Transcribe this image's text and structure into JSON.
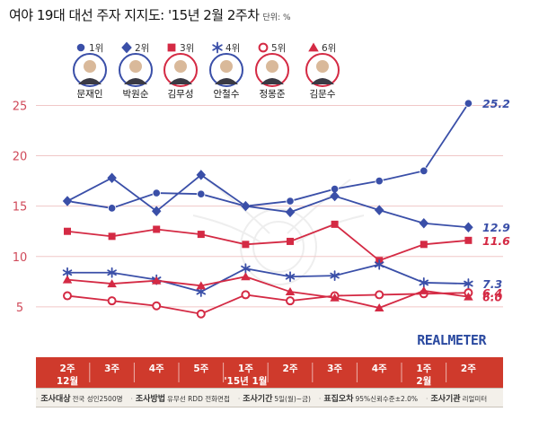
{
  "title": "여야 19대 대선 주자 지지도: '15년 2월 2주차",
  "unit": "단위: %",
  "brand": "REALMETER",
  "candidates": [
    {
      "rank": "1위",
      "name": "문재인",
      "color": "#3a4fa8",
      "marker": "circle"
    },
    {
      "rank": "2위",
      "name": "박원순",
      "color": "#3a4fa8",
      "marker": "diamond"
    },
    {
      "rank": "3위",
      "name": "김무성",
      "color": "#d42a44",
      "marker": "square"
    },
    {
      "rank": "4위",
      "name": "안철수",
      "color": "#3a4fa8",
      "marker": "asterisk"
    },
    {
      "rank": "5위",
      "name": "정몽준",
      "color": "#d42a44",
      "marker": "ring"
    },
    {
      "rank": "6위",
      "name": "김문수",
      "color": "#d42a44",
      "marker": "triangle"
    }
  ],
  "chart_data": {
    "type": "line",
    "categories": [
      [
        "2주",
        "12월"
      ],
      [
        "3주"
      ],
      [
        "4주"
      ],
      [
        "5주"
      ],
      [
        "1주",
        "'15년 1월"
      ],
      [
        "2주"
      ],
      [
        "3주"
      ],
      [
        "4주"
      ],
      [
        "1주",
        "2월"
      ],
      [
        "2주"
      ]
    ],
    "ylim": [
      0,
      27
    ],
    "yticks": [
      5,
      10,
      15,
      20,
      25
    ],
    "series": [
      {
        "name": "문재인",
        "color": "#3a4fa8",
        "marker": "circle",
        "values": [
          15.5,
          14.8,
          16.3,
          16.2,
          15.0,
          15.5,
          16.7,
          17.5,
          18.5,
          25.2
        ],
        "end_label": "25.2"
      },
      {
        "name": "박원순",
        "color": "#3a4fa8",
        "marker": "diamond",
        "values": [
          15.5,
          17.8,
          14.5,
          18.1,
          15.0,
          14.4,
          16.0,
          14.6,
          13.3,
          12.9
        ],
        "end_label": "12.9"
      },
      {
        "name": "김무성",
        "color": "#d42a44",
        "marker": "square",
        "values": [
          12.5,
          12.0,
          12.7,
          12.2,
          11.2,
          11.5,
          13.2,
          9.6,
          11.2,
          11.6
        ],
        "end_label": "11.6"
      },
      {
        "name": "안철수",
        "color": "#3a4fa8",
        "marker": "asterisk",
        "values": [
          8.4,
          8.4,
          7.7,
          6.5,
          8.8,
          8.0,
          8.1,
          9.2,
          7.4,
          7.3
        ],
        "end_label": "7.3"
      },
      {
        "name": "정몽준",
        "color": "#d42a44",
        "marker": "ring",
        "values": [
          6.1,
          5.6,
          5.1,
          4.3,
          6.2,
          5.6,
          6.1,
          6.2,
          6.3,
          6.4
        ],
        "end_label": "6.4"
      },
      {
        "name": "김문수",
        "color": "#d42a44",
        "marker": "triangle",
        "values": [
          7.7,
          7.3,
          7.6,
          7.1,
          8.0,
          6.5,
          5.9,
          4.9,
          6.6,
          6.0
        ],
        "end_label": "6.0"
      }
    ]
  },
  "footer": [
    {
      "label": "조사대상",
      "value": "전국 성인2500명"
    },
    {
      "label": "조사방법",
      "value": "유무선 RDD 전화면접"
    },
    {
      "label": "조사기간",
      "value": "5일(월)~금)"
    },
    {
      "label": "표집오차",
      "value": "95%신뢰수준±2.0%"
    },
    {
      "label": "조사기관",
      "value": "리얼미터"
    }
  ]
}
